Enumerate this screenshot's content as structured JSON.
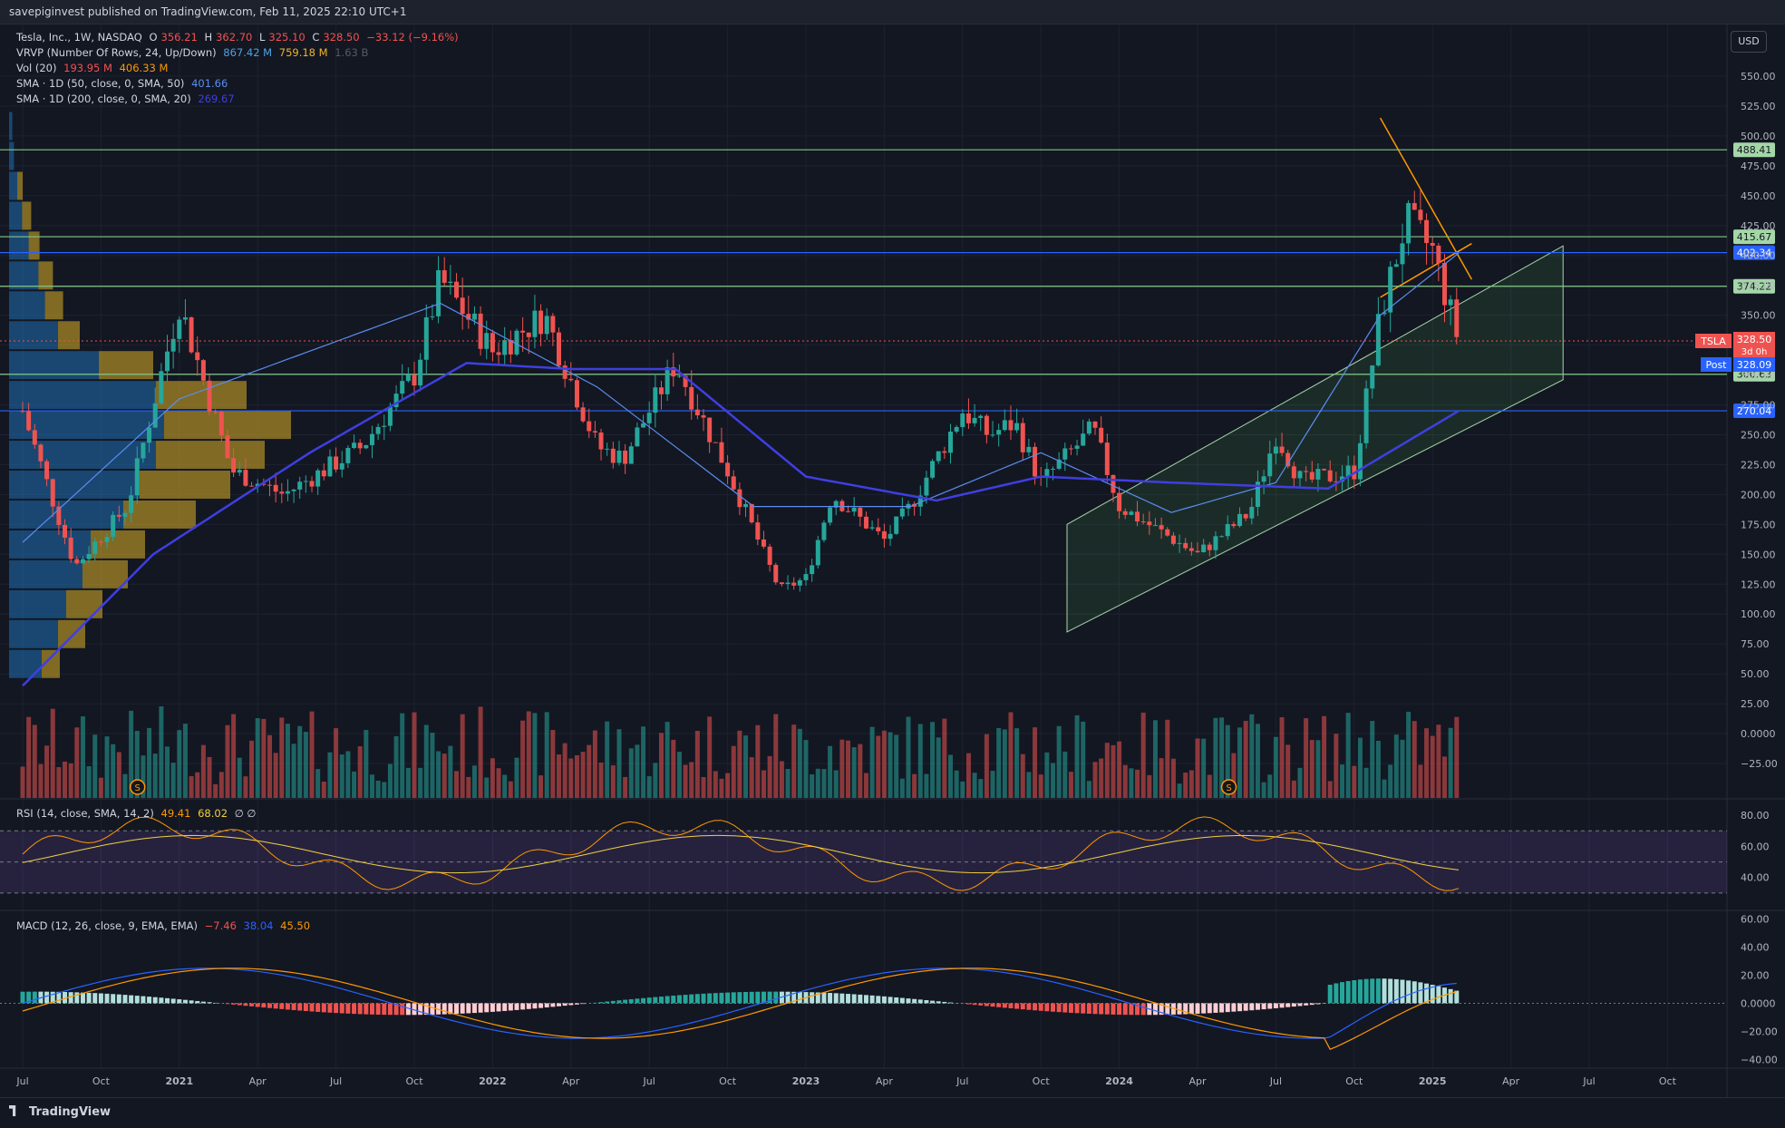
{
  "header": {
    "publisher": "savepiginvest published on TradingView.com, Feb 11, 2025 22:10 UTC+1"
  },
  "currency_button": "USD",
  "legend": {
    "symbol": "Tesla, Inc., 1W, NASDAQ",
    "o_label": "O",
    "o": "356.21",
    "h_label": "H",
    "h": "362.70",
    "l_label": "L",
    "l": "325.10",
    "c_label": "C",
    "c": "328.50",
    "change": "−33.12 (−9.16%)",
    "vrvp": "VRVP (Number Of Rows, 24, Up/Down)",
    "vrvp_up": "867.42 M",
    "vrvp_down": "759.18 M",
    "vrvp_total": "1.63 B",
    "vol": "Vol (20)",
    "vol_a": "193.95 M",
    "vol_b": "406.33 M",
    "sma50": "SMA · 1D (50, close, 0, SMA, 50)",
    "sma50_val": "401.66",
    "sma200": "SMA · 1D (200, close, 0, SMA, 20)",
    "sma200_val": "269.67",
    "rsi": "RSI (14, close, SMA, 14, 2)",
    "rsi_a": "49.41",
    "rsi_b": "68.02",
    "rsi_c": "∅ ∅",
    "macd": "MACD (12, 26, close, 9, EMA, EMA)",
    "macd_a": "−7.46",
    "macd_b": "38.04",
    "macd_c": "45.50"
  },
  "footer": {
    "brand": "TradingView"
  },
  "colors": {
    "bg": "#131722",
    "up": "#26a69a",
    "down": "#ef5350",
    "sma50": "#5b8def",
    "sma200": "#3f3fe0",
    "hline_green": "#81c784",
    "hline_blue": "#2962ff",
    "rsi_band": "#7e57c2",
    "macd_line": "#2962ff",
    "signal_line": "#ff9800",
    "channel": "#a5d6a7",
    "wedge": "#ff9800"
  },
  "chart_data": {
    "type": "candlestick",
    "title": "Tesla, Inc., 1W, NASDAQ",
    "ylim": [
      -25,
      575
    ],
    "price_ticks": [
      "550.00",
      "525.00",
      "500.00",
      "475.00",
      "450.00",
      "425.00",
      "400.00",
      "375.00",
      "350.00",
      "325.00",
      "300.00",
      "275.00",
      "250.00",
      "225.00",
      "200.00",
      "175.00",
      "150.00",
      "125.00",
      "100.00",
      "75.00",
      "50.00",
      "25.00",
      "0.0000",
      "−25.00"
    ],
    "x_ticks": [
      "Jul",
      "Oct",
      "2021",
      "Apr",
      "Jul",
      "Oct",
      "2022",
      "Apr",
      "Jul",
      "Oct",
      "2023",
      "Apr",
      "Jul",
      "Oct",
      "2024",
      "Apr",
      "Jul",
      "Oct",
      "2025",
      "Apr",
      "Jul",
      "Oct"
    ],
    "last": {
      "symbol": "TSLA",
      "price": "328.50",
      "countdown": "3d 0h",
      "post_label": "Post",
      "post_price": "328.09"
    },
    "horizontal_levels": [
      {
        "value": 488.41,
        "label": "488.41",
        "color": "green"
      },
      {
        "value": 415.67,
        "label": "415.67",
        "color": "green"
      },
      {
        "value": 402.34,
        "label": "402.34",
        "color": "blue"
      },
      {
        "value": 374.22,
        "label": "374.22",
        "color": "green"
      },
      {
        "value": 300.63,
        "label": "300.63",
        "color": "green"
      },
      {
        "value": 270.04,
        "label": "270.04",
        "color": "blue"
      }
    ],
    "weekly_close_anchors": [
      [
        "2020-07",
        270
      ],
      [
        "2020-09",
        140
      ],
      [
        "2020-11",
        190
      ],
      [
        "2021-01",
        360
      ],
      [
        "2021-03",
        220
      ],
      [
        "2021-05",
        200
      ],
      [
        "2021-08",
        240
      ],
      [
        "2021-10",
        300
      ],
      [
        "2021-11",
        380
      ],
      [
        "2022-01",
        320
      ],
      [
        "2022-03",
        350
      ],
      [
        "2022-05",
        240
      ],
      [
        "2022-06",
        230
      ],
      [
        "2022-08",
        310
      ],
      [
        "2022-10",
        220
      ],
      [
        "2022-12",
        120
      ],
      [
        "2023-01",
        130
      ],
      [
        "2023-02",
        200
      ],
      [
        "2023-04",
        162
      ],
      [
        "2023-05",
        190
      ],
      [
        "2023-07",
        270
      ],
      [
        "2023-08",
        250
      ],
      [
        "2023-09",
        260
      ],
      [
        "2023-10",
        210
      ],
      [
        "2023-12",
        255
      ],
      [
        "2024-01",
        190
      ],
      [
        "2024-04",
        150
      ],
      [
        "2024-06",
        185
      ],
      [
        "2024-07",
        250
      ],
      [
        "2024-08",
        210
      ],
      [
        "2024-10",
        220
      ],
      [
        "2024-11",
        350
      ],
      [
        "2024-12",
        430
      ],
      [
        "2025-01",
        404
      ],
      [
        "2025-02",
        328.5
      ]
    ],
    "sma50_anchors": [
      [
        "2020-07",
        160
      ],
      [
        "2021-01",
        280
      ],
      [
        "2021-06",
        320
      ],
      [
        "2021-11",
        360
      ],
      [
        "2022-05",
        290
      ],
      [
        "2022-11",
        190
      ],
      [
        "2023-05",
        190
      ],
      [
        "2023-10",
        235
      ],
      [
        "2024-03",
        185
      ],
      [
        "2024-07",
        210
      ],
      [
        "2024-11",
        350
      ],
      [
        "2025-02",
        402
      ]
    ],
    "sma200_anchors": [
      [
        "2020-07",
        40
      ],
      [
        "2020-12",
        150
      ],
      [
        "2021-06",
        235
      ],
      [
        "2021-12",
        310
      ],
      [
        "2022-04",
        305
      ],
      [
        "2022-08",
        305
      ],
      [
        "2023-01",
        215
      ],
      [
        "2023-06",
        195
      ],
      [
        "2023-10",
        215
      ],
      [
        "2024-03",
        210
      ],
      [
        "2024-09",
        205
      ],
      [
        "2025-02",
        270
      ]
    ],
    "channel": {
      "lower_start": [
        "2023-11",
        85
      ],
      "lower_end": [
        "2025-06",
        296
      ],
      "upper_start": [
        "2023-11",
        175
      ],
      "upper_end": [
        "2025-06",
        408
      ]
    },
    "wedge": {
      "upper_start": [
        "2024-11",
        515
      ],
      "upper_end": [
        "2025-02",
        380
      ],
      "lower_start": [
        "2024-11",
        365
      ],
      "lower_end": [
        "2025-02",
        410
      ]
    },
    "volume_ylim": [
      0,
      300
    ],
    "rsi": {
      "ticks": [
        "80.00",
        "60.00",
        "40.00"
      ],
      "band": [
        30,
        70
      ],
      "ylim": [
        20,
        90
      ]
    },
    "macd": {
      "ticks": [
        "60.00",
        "40.00",
        "20.00",
        "0.0000",
        "−20.00",
        "−40.00"
      ],
      "ylim": [
        -45,
        65
      ]
    }
  }
}
